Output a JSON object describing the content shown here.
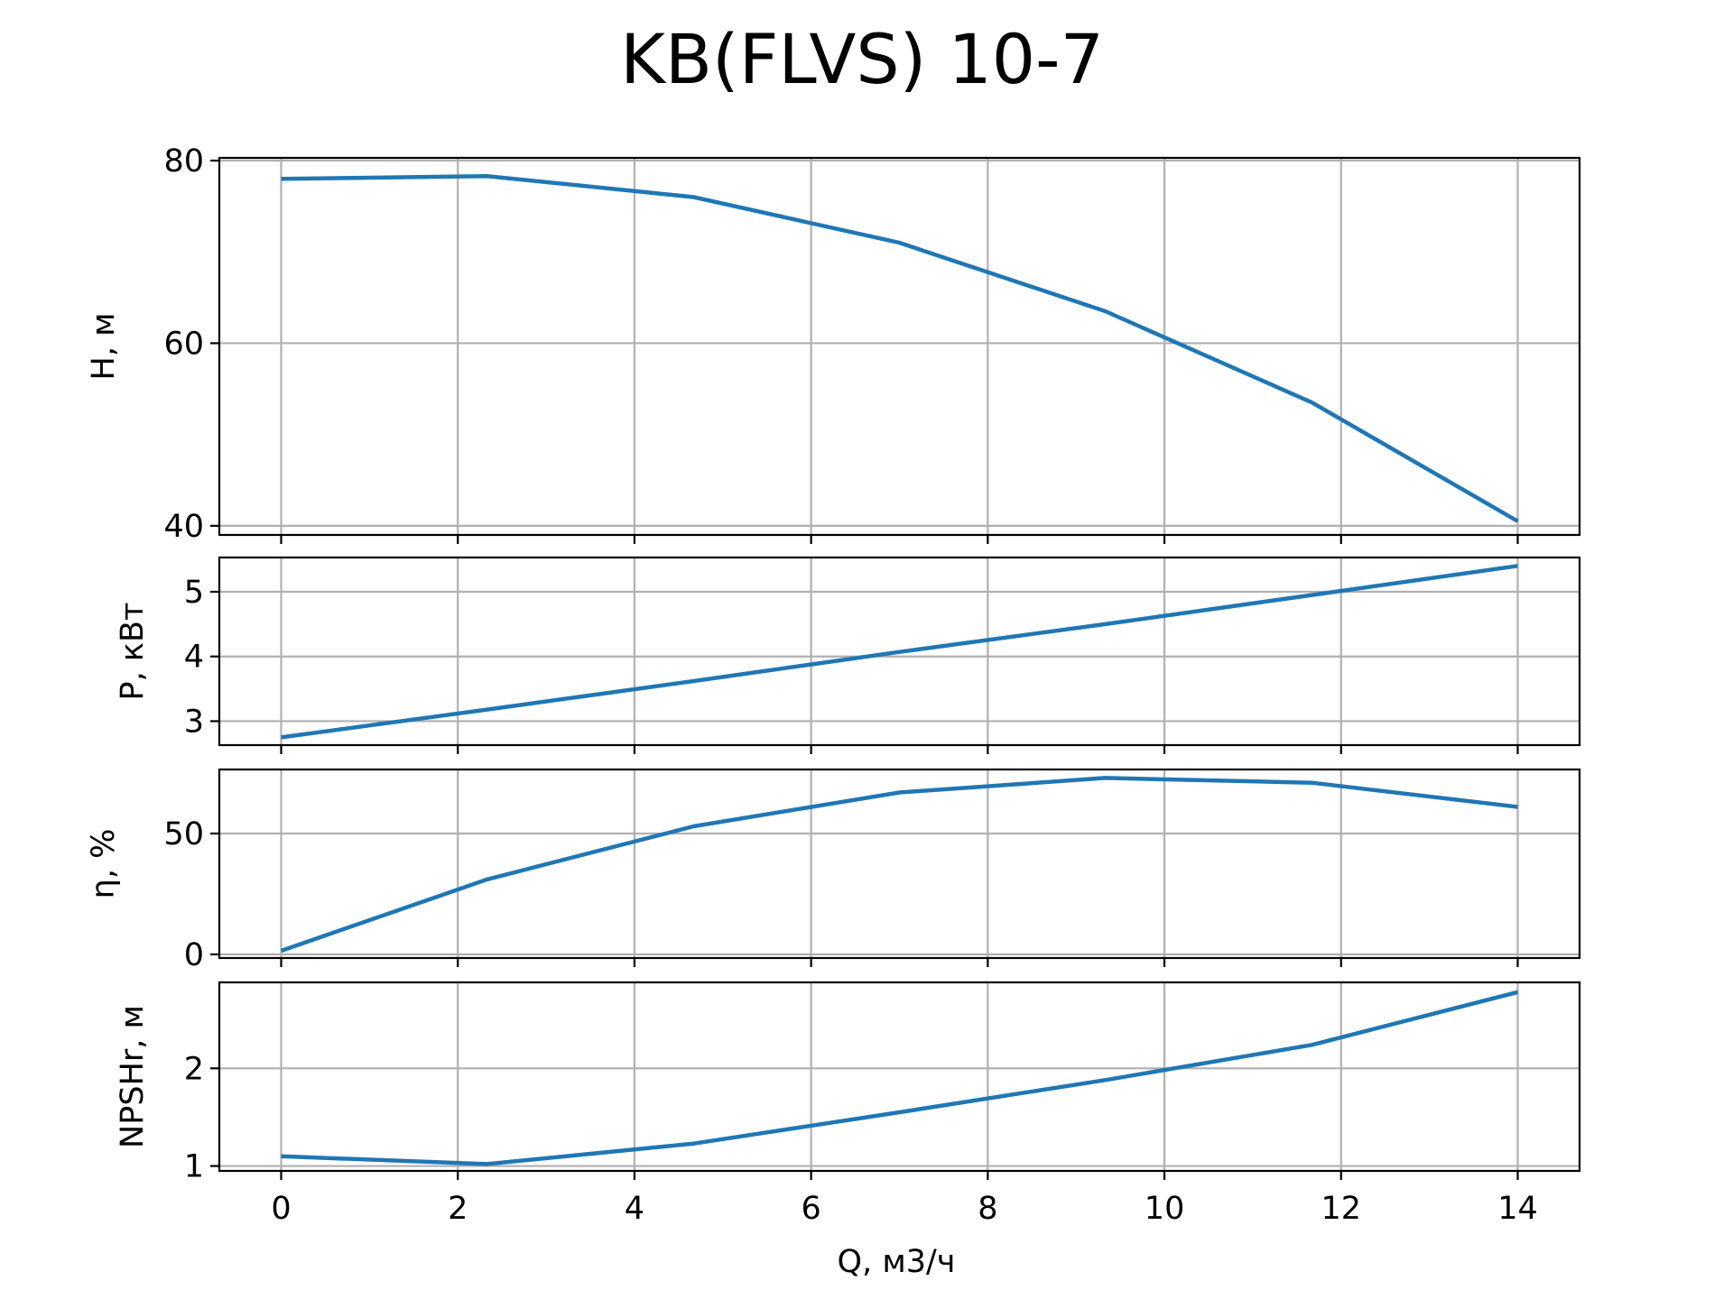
{
  "title": "KB(FLVS) 10-7",
  "colors": {
    "line": "#1f77b4",
    "grid": "#b0b0b0",
    "frame": "#000000"
  },
  "chart_data": [
    {
      "type": "line",
      "panel": "head",
      "ylabel": "H, м",
      "x": [
        0,
        2.33,
        4.67,
        7.0,
        9.33,
        11.67,
        14.0
      ],
      "y": [
        78.0,
        78.3,
        76.0,
        71.0,
        63.5,
        53.5,
        40.5
      ],
      "ylim": [
        39,
        80.3
      ],
      "yticks": [
        40,
        60,
        80
      ]
    },
    {
      "type": "line",
      "panel": "power",
      "ylabel": "P, кВт",
      "x": [
        0,
        2.33,
        4.67,
        7.0,
        9.33,
        11.67,
        14.0
      ],
      "y": [
        2.75,
        3.18,
        3.62,
        4.07,
        4.5,
        4.95,
        5.4
      ],
      "ylim": [
        2.63,
        5.53
      ],
      "yticks": [
        3,
        4,
        5
      ]
    },
    {
      "type": "line",
      "panel": "efficiency",
      "ylabel": "η, %",
      "x": [
        0,
        2.33,
        4.67,
        7.0,
        9.33,
        11.67,
        14.0
      ],
      "y": [
        1.5,
        31.0,
        53.0,
        67.0,
        73.0,
        71.0,
        61.0
      ],
      "ylim": [
        -1.5,
        76.5
      ],
      "yticks": [
        0,
        50
      ]
    },
    {
      "type": "line",
      "panel": "npsh",
      "ylabel": "NPSHr, м",
      "xlabel": "Q, м3/ч",
      "x": [
        0,
        2.33,
        4.67,
        7.0,
        9.33,
        11.67,
        14.0
      ],
      "y": [
        1.1,
        1.02,
        1.23,
        1.55,
        1.88,
        2.24,
        2.78
      ],
      "ylim": [
        0.95,
        2.88
      ],
      "yticks": [
        1,
        2
      ],
      "xlim": [
        -0.7,
        14.7
      ],
      "xticks": [
        0,
        2,
        4,
        6,
        8,
        10,
        12,
        14
      ]
    }
  ]
}
